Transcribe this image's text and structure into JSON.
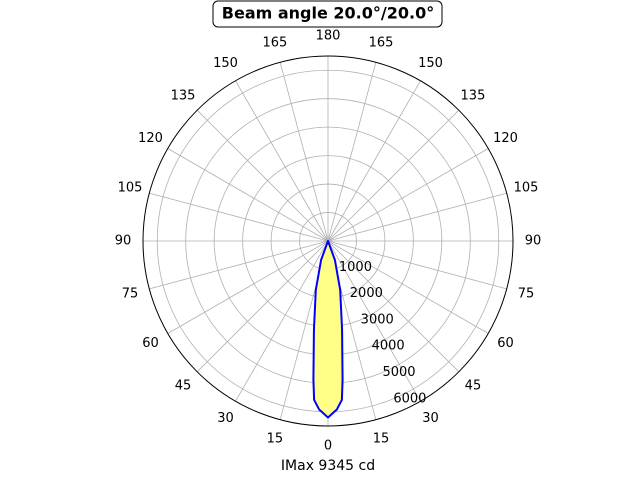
{
  "chart_data": {
    "type": "polar",
    "title": "Beam angle 20.0°/20.0°",
    "x_label": "IMax 9345 cd",
    "series": [
      {
        "color": "#0000ff",
        "fill": "#ffff88",
        "x": [
          -25,
          -20,
          -14,
          -9,
          -6,
          -5,
          -3,
          0,
          3,
          5,
          6,
          9,
          14,
          20,
          25
        ],
        "values": [
          0,
          710,
          1770,
          3160,
          4900,
          5600,
          5930,
          6200,
          5930,
          5600,
          4900,
          3160,
          1770,
          710,
          0
        ]
      }
    ],
    "rlim": [
      0,
      6500
    ],
    "rticks": [
      1000,
      2000,
      3000,
      4000,
      5000,
      6000
    ],
    "thetaticks": [
      0,
      15,
      30,
      45,
      60,
      75,
      90,
      105,
      120,
      135,
      150,
      165,
      180
    ],
    "grid": true
  }
}
